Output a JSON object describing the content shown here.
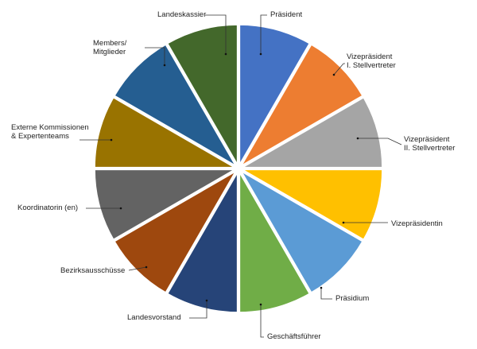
{
  "chart_data": {
    "type": "pie",
    "title": "",
    "start_angle_deg": 0,
    "direction": "clockwise",
    "exploded": true,
    "slices": [
      {
        "id": "praesident",
        "label_lines": [
          "Präsident"
        ],
        "value": 1,
        "color": "#4472C4"
      },
      {
        "id": "vizepraesident-1",
        "label_lines": [
          "Vizepräsident",
          "I. Stellvertreter"
        ],
        "value": 1,
        "color": "#ED7D31"
      },
      {
        "id": "vizepraesident-2",
        "label_lines": [
          "Vizepräsident",
          "II. Stellvertreter"
        ],
        "value": 1,
        "color": "#A5A5A5"
      },
      {
        "id": "vizepraesidentin",
        "label_lines": [
          "Vizepräsidentin"
        ],
        "value": 1,
        "color": "#FFC000"
      },
      {
        "id": "praesidium",
        "label_lines": [
          "Präsidium"
        ],
        "value": 1,
        "color": "#5B9BD5"
      },
      {
        "id": "geschaeftsfuehrer",
        "label_lines": [
          "Geschäftsführer"
        ],
        "value": 1,
        "color": "#70AD47"
      },
      {
        "id": "landesvorstand",
        "label_lines": [
          "Landesvorstand"
        ],
        "value": 1,
        "color": "#264478"
      },
      {
        "id": "bezirksausschuesse",
        "label_lines": [
          "Bezirksausschüsse"
        ],
        "value": 1,
        "color": "#9E480E"
      },
      {
        "id": "koordinatorin",
        "label_lines": [
          "Koordinatorin (en)"
        ],
        "value": 1,
        "color": "#636363"
      },
      {
        "id": "externe-kommissionen",
        "label_lines": [
          "Externe Kommissionen",
          "& Expertenteams"
        ],
        "value": 1,
        "color": "#997300"
      },
      {
        "id": "members",
        "label_lines": [
          "Members/",
          "Mitglieder"
        ],
        "value": 1,
        "color": "#255E91"
      },
      {
        "id": "landeskassier",
        "label_lines": [
          "Landeskassier"
        ],
        "value": 1,
        "color": "#43682B"
      }
    ]
  }
}
